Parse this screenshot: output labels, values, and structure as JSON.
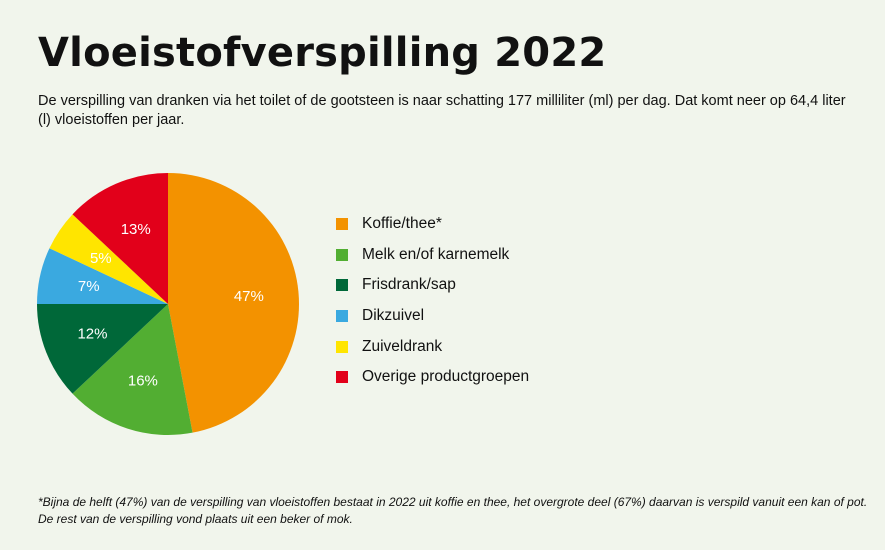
{
  "title": "Vloeistofverspilling 2022",
  "subtitle": "De verspilling van dranken via het toilet of de gootsteen is naar schatting 177 milliliter (ml) per dag. Dat komt neer op 64,4 liter (l) vloeistoffen per jaar.",
  "footnote": "*Bijna de helft (47%) van de verspilling van vloeistoffen bestaat in 2022 uit koffie en thee, het overgrote deel (67%) daarvan is verspild vanuit een kan of pot. De rest van de verspilling vond plaats uit een beker of mok.",
  "chart_data": {
    "type": "pie",
    "start": "12 o'clock, clockwise",
    "legend_position": "right",
    "slices": [
      {
        "label": "Koffie/thee*",
        "value": 47,
        "value_label": "47%",
        "color": "#f39200"
      },
      {
        "label": "Melk en/of karnemelk",
        "value": 16,
        "value_label": "16%",
        "color": "#52ae32"
      },
      {
        "label": "Frisdrank/sap",
        "value": 12,
        "value_label": "12%",
        "color": "#006839"
      },
      {
        "label": "Dikzuivel",
        "value": 7,
        "value_label": "7%",
        "color": "#3aa9e0"
      },
      {
        "label": "Zuiveldrank",
        "value": 5,
        "value_label": "5%",
        "color": "#ffe500"
      },
      {
        "label": "Overige productgroepen",
        "value": 13,
        "value_label": "13%",
        "color": "#e2001a"
      }
    ]
  }
}
